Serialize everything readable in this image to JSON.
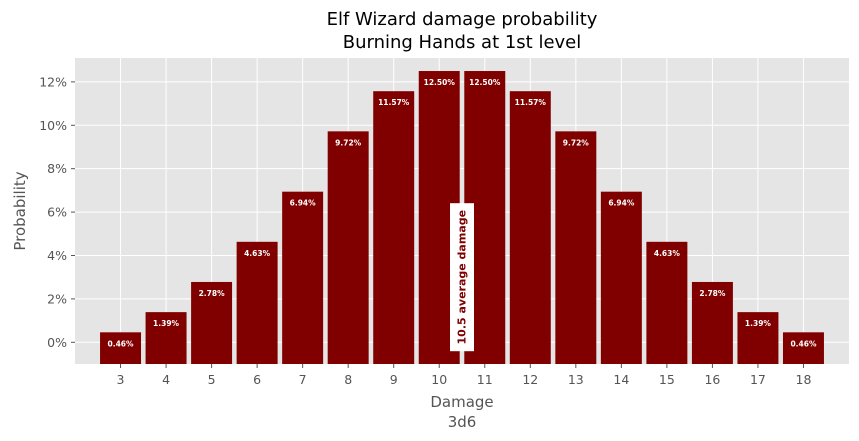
{
  "chart_data": {
    "type": "bar",
    "title": "Elf Wizard damage probability",
    "subtitle": "Burning Hands at 1st level",
    "xlabel": "Damage",
    "xlabel_sub": "3d6",
    "ylabel": "Probability",
    "categories": [
      "3",
      "4",
      "5",
      "6",
      "7",
      "8",
      "9",
      "10",
      "11",
      "12",
      "13",
      "14",
      "15",
      "16",
      "17",
      "18"
    ],
    "values": [
      0.46,
      1.39,
      2.78,
      4.63,
      6.94,
      9.72,
      11.57,
      12.5,
      12.5,
      11.57,
      9.72,
      6.94,
      4.63,
      2.78,
      1.39,
      0.46
    ],
    "value_labels": [
      "0.46%",
      "1.39%",
      "2.78%",
      "4.63%",
      "6.94%",
      "9.72%",
      "11.57%",
      "12.50%",
      "12.50%",
      "11.57%",
      "9.72%",
      "6.94%",
      "4.63%",
      "2.78%",
      "1.39%",
      "0.46%"
    ],
    "yticks": [
      0,
      2,
      4,
      6,
      8,
      10,
      12
    ],
    "ytick_labels": [
      "0%",
      "2%",
      "4%",
      "6%",
      "8%",
      "10%",
      "12%"
    ],
    "ylim": [
      -1,
      13.1
    ],
    "xlim": [
      2,
      19
    ],
    "mean": 10.5,
    "mean_label": "10.5 average damage",
    "grid": true,
    "bar_color": "#800000",
    "background_color": "#e5e5e5",
    "grid_color": "#ffffff"
  }
}
